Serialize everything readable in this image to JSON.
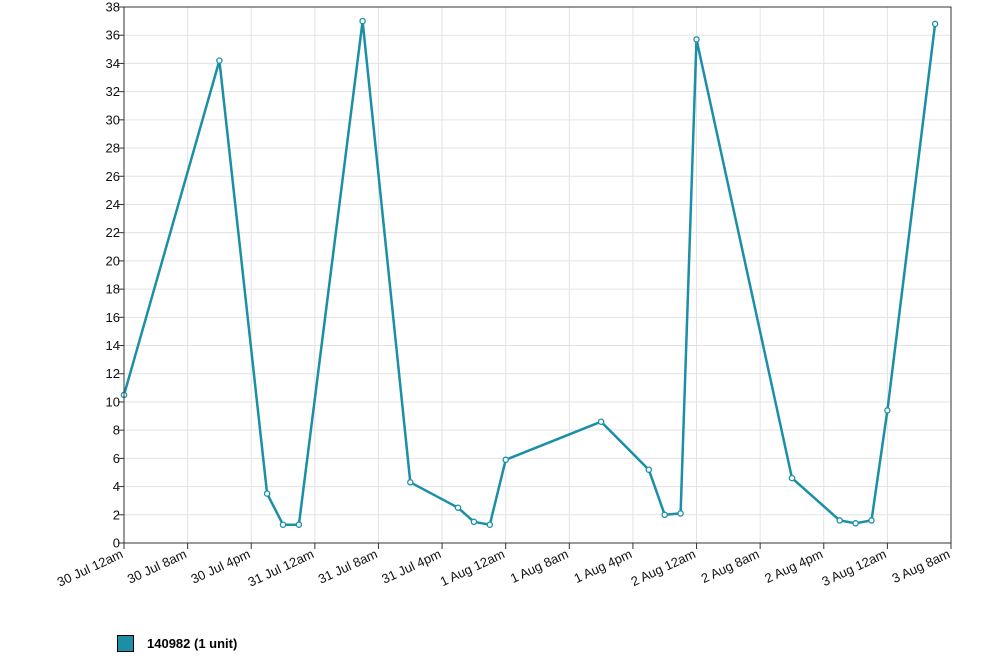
{
  "chart_data": {
    "type": "line",
    "title": "",
    "xlabel": "",
    "ylabel": "",
    "ylim": [
      0,
      38
    ],
    "y_ticks": [
      0,
      2,
      4,
      6,
      8,
      10,
      12,
      14,
      16,
      18,
      20,
      22,
      24,
      26,
      28,
      30,
      32,
      34,
      36,
      38
    ],
    "xlim": [
      "2014-07-30T00:00",
      "2014-08-03T08:00"
    ],
    "x_tick_labels": [
      "30 Jul 12am",
      "30 Jul 8am",
      "30 Jul 4pm",
      "31 Jul 12am",
      "31 Jul 8am",
      "31 Jul 4pm",
      "1 Aug 12am",
      "1 Aug 8am",
      "1 Aug 4pm",
      "2 Aug 12am",
      "2 Aug 8am",
      "2 Aug 4pm",
      "3 Aug 12am",
      "3 Aug 8am"
    ],
    "grid": true,
    "legend": "bottom-left",
    "color": "#1a8fa6",
    "series": [
      {
        "name": "140982 (1 unit)",
        "points": [
          {
            "x": "2014-07-30T00:00",
            "y": 10.5
          },
          {
            "x": "2014-07-30T12:00",
            "y": 34.2
          },
          {
            "x": "2014-07-30T18:00",
            "y": 3.5
          },
          {
            "x": "2014-07-30T20:00",
            "y": 1.3
          },
          {
            "x": "2014-07-30T22:00",
            "y": 1.3
          },
          {
            "x": "2014-07-31T06:00",
            "y": 37.0
          },
          {
            "x": "2014-07-31T12:00",
            "y": 4.3
          },
          {
            "x": "2014-07-31T18:00",
            "y": 2.5
          },
          {
            "x": "2014-07-31T20:00",
            "y": 1.5
          },
          {
            "x": "2014-07-31T22:00",
            "y": 1.3
          },
          {
            "x": "2014-08-01T00:00",
            "y": 5.9
          },
          {
            "x": "2014-08-01T12:00",
            "y": 8.6
          },
          {
            "x": "2014-08-01T18:00",
            "y": 5.2
          },
          {
            "x": "2014-08-01T20:00",
            "y": 2.0
          },
          {
            "x": "2014-08-01T22:00",
            "y": 2.1
          },
          {
            "x": "2014-08-02T00:00",
            "y": 35.7
          },
          {
            "x": "2014-08-02T12:00",
            "y": 4.6
          },
          {
            "x": "2014-08-02T18:00",
            "y": 1.6
          },
          {
            "x": "2014-08-02T20:00",
            "y": 1.4
          },
          {
            "x": "2014-08-02T22:00",
            "y": 1.6
          },
          {
            "x": "2014-08-03T00:00",
            "y": 9.4
          },
          {
            "x": "2014-08-03T06:00",
            "y": 36.8
          }
        ]
      }
    ]
  }
}
